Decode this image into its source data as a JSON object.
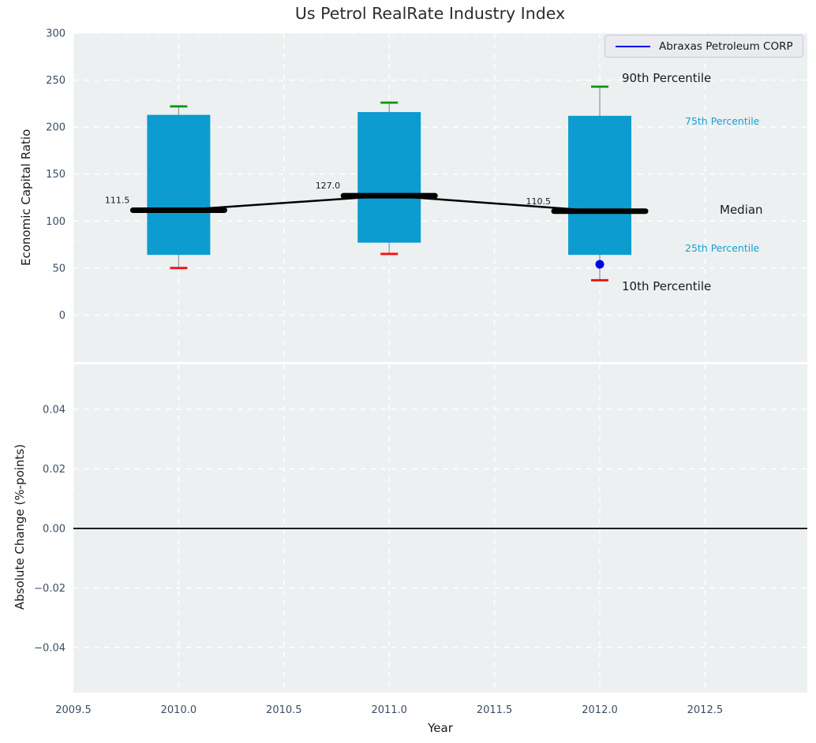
{
  "figure": {
    "title": "Us Petrol RealRate Industry Index",
    "xlabel": "Year",
    "top_ylabel": "Economic Capital Ratio",
    "bottom_ylabel": "Absolute Change (%-points)"
  },
  "legend": {
    "series_label": "Abraxas Petroleum CORP"
  },
  "annotations": {
    "p90": "90th Percentile",
    "p75": "75th Percentile",
    "median": "Median",
    "p25": "25th Percentile",
    "p10": "10th Percentile"
  },
  "colors": {
    "plot_bg": "#ecf0f1",
    "grid": "#ffffff",
    "box_fill": "#0c9cd0",
    "cap_90": "#0b930b",
    "cap_10": "#ee1111",
    "whisker": "#999999",
    "median_line": "#000000",
    "company_blue": "#0000e6",
    "tick_text": "#3d4d63",
    "cyan_text": "#189ed2",
    "label_text": "#1a1a1a"
  },
  "chart_data": [
    {
      "type": "bar",
      "subtype": "percentile-boxes",
      "title": "Us Petrol RealRate Industry Index",
      "ylabel": "Economic Capital Ratio",
      "xlabel": "Year",
      "ylim": [
        -50,
        300
      ],
      "xlim": [
        2009.5,
        2012.99
      ],
      "grid": "white-dashed",
      "legend_position": "upper right",
      "legend_entries": [
        "Abraxas Petroleum CORP"
      ],
      "yticks": [
        300,
        250,
        200,
        150,
        100,
        50,
        0
      ],
      "ytick_labels": [
        "300",
        "250",
        "200",
        "150",
        "100",
        "50",
        "0"
      ],
      "xticks": [
        2009.5,
        2010.0,
        2010.5,
        2011.0,
        2011.5,
        2012.0,
        2012.5
      ],
      "xtick_labels": [
        "2009.5",
        "2010.0",
        "2010.5",
        "2011.0",
        "2011.5",
        "2012.0",
        "2012.5"
      ],
      "series": [
        {
          "year": 2010,
          "p10": 50,
          "p25": 64,
          "median": 111.5,
          "p75": 213,
          "p90": 222,
          "median_label": "111.5"
        },
        {
          "year": 2011,
          "p10": 65,
          "p25": 77,
          "median": 127.0,
          "p75": 216,
          "p90": 226,
          "median_label": "127.0"
        },
        {
          "year": 2012,
          "p10": 37,
          "p25": 64,
          "median": 110.5,
          "p75": 212,
          "p90": 243,
          "median_label": "110.5"
        }
      ],
      "company_series": {
        "name": "Abraxas Petroleum CORP",
        "points": [
          {
            "year": 2012,
            "value": 54
          }
        ]
      }
    },
    {
      "type": "line",
      "ylabel": "Absolute Change (%-points)",
      "xlabel": "Year",
      "ylim": [
        -0.055,
        0.055
      ],
      "xlim": [
        2009.5,
        2012.99
      ],
      "grid": "white-dashed",
      "yticks": [
        0.04,
        0.02,
        0.0,
        -0.02,
        -0.04
      ],
      "ytick_labels": [
        "0.04",
        "0.02",
        "0.00",
        "−0.02",
        "−0.04"
      ],
      "xticks": [
        2009.5,
        2010.0,
        2010.5,
        2011.0,
        2011.5,
        2012.0,
        2012.5
      ],
      "xtick_labels": [
        "2009.5",
        "2010.0",
        "2010.5",
        "2011.0",
        "2011.5",
        "2012.0",
        "2012.5"
      ],
      "zero_line": 0.0,
      "values": []
    }
  ]
}
